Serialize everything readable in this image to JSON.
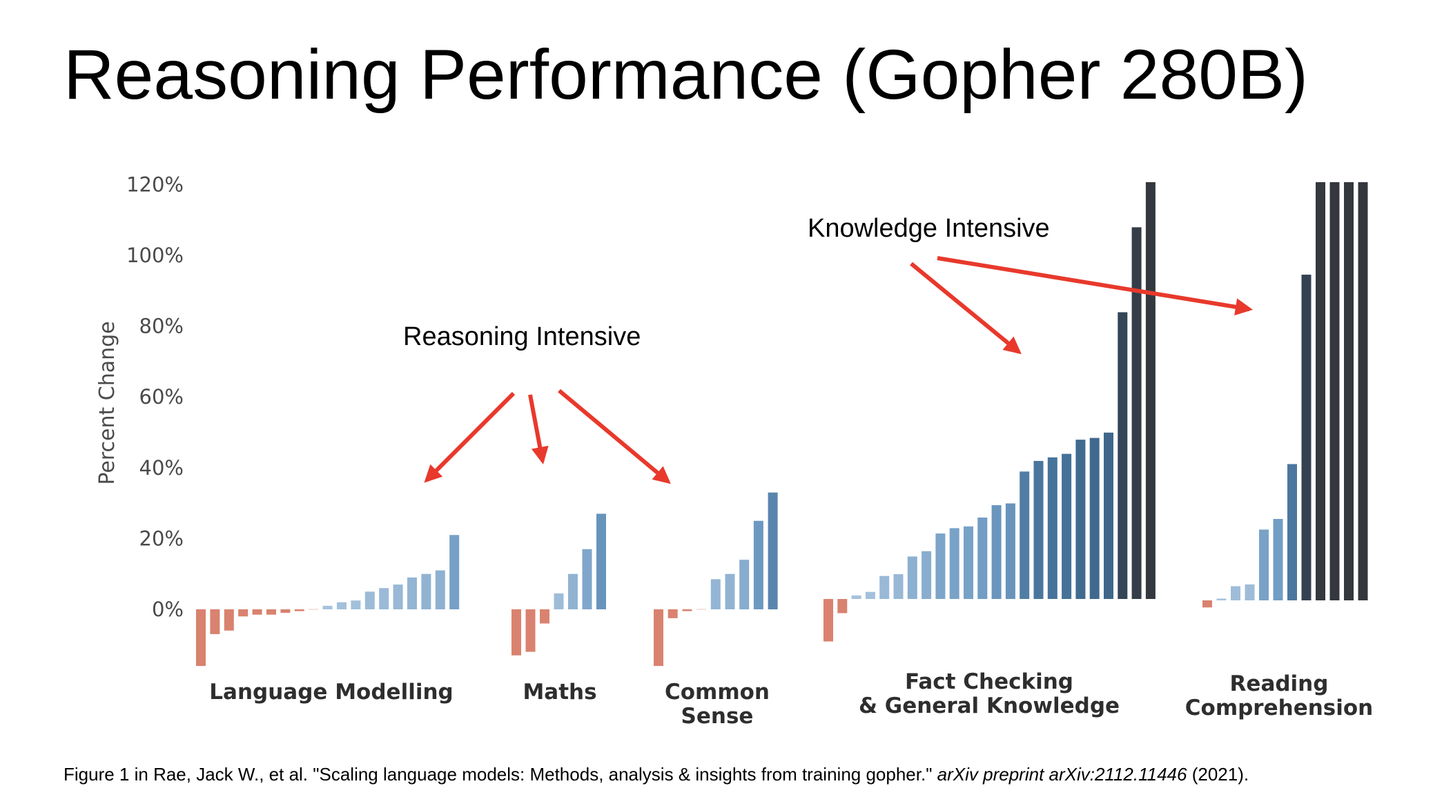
{
  "title": "Reasoning Performance (Gopher 280B)",
  "caption": {
    "prefix": "Figure 1 in Rae, Jack W., et al. \"Scaling language models: Methods, analysis & insights from training gopher.\" ",
    "italic": "arXiv preprint arXiv:2112.11446",
    "suffix": " (2021)."
  },
  "colors": {
    "negative": "#d9826f",
    "axis": "#4a4a4a",
    "annotation_arrow": "#e8392c"
  },
  "chart_data": {
    "type": "bar",
    "ylabel": "Percent Change",
    "ylim": [
      -16,
      120
    ],
    "yticks": [
      "0%",
      "20%",
      "40%",
      "60%",
      "80%",
      "100%",
      "120%"
    ],
    "groups": [
      {
        "name": "Language Modelling",
        "label_lines": [
          "Language Modelling"
        ],
        "values": [
          -16,
          -7,
          -6,
          -2,
          -1.5,
          -1.5,
          -1,
          -0.5,
          0,
          1,
          2,
          2.5,
          5,
          6,
          7,
          9,
          10,
          11,
          21
        ]
      },
      {
        "name": "Maths",
        "label_lines": [
          "Maths"
        ],
        "values": [
          -13,
          -12,
          -4,
          4.5,
          10,
          17,
          27
        ]
      },
      {
        "name": "Common Sense",
        "label_lines": [
          "Common",
          "Sense"
        ],
        "values": [
          -16,
          -2.5,
          -0.5,
          0,
          8.5,
          10,
          14,
          25,
          33
        ]
      },
      {
        "name": "Fact Checking & General Knowledge",
        "label_lines": [
          "Fact Checking",
          "& General Knowledge"
        ],
        "values": [
          -12,
          -4,
          1,
          2,
          6.5,
          7,
          12,
          13.5,
          18.5,
          20,
          20.5,
          23,
          26.5,
          27,
          36,
          39,
          40,
          41,
          45,
          45.5,
          47,
          81,
          105,
          118
        ]
      },
      {
        "name": "Reading Comprehension",
        "label_lines": [
          "Reading",
          "Comprehension"
        ],
        "values": [
          -2,
          0.5,
          4,
          4.5,
          20,
          23,
          38.5,
          92,
          119,
          120,
          120,
          120
        ]
      }
    ]
  },
  "annotations": {
    "reasoning": "Reasoning Intensive",
    "knowledge": "Knowledge Intensive"
  }
}
